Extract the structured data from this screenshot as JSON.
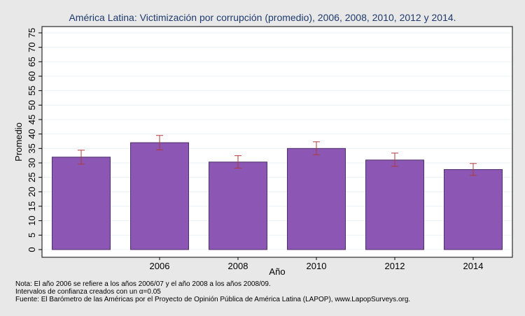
{
  "chart_data": {
    "type": "bar",
    "title": "América Latina: Victimización por corrupción (promedio), 2006, 2008, 2010, 2012 y 2014.",
    "xlabel": "Año",
    "ylabel": "Promedio",
    "categories": [
      "",
      "2006",
      "2008",
      "2010",
      "2012",
      "2014"
    ],
    "values": [
      32.0,
      37.0,
      30.3,
      35.0,
      31.0,
      27.7
    ],
    "ci_low": [
      29.6,
      34.5,
      28.2,
      32.8,
      28.8,
      25.7
    ],
    "ci_high": [
      34.4,
      39.5,
      32.5,
      37.3,
      33.4,
      29.8
    ],
    "ylim": [
      0,
      75
    ],
    "yticks": [
      0,
      5,
      10,
      15,
      20,
      25,
      30,
      35,
      40,
      45,
      50,
      55,
      60,
      65,
      70,
      75
    ],
    "grid": true,
    "bar_color": "#8b56b4",
    "bar_edge_color": "#4e2f69",
    "errorbar_color": "#b33a3a"
  },
  "notes": [
    "Nota: El año 2006 se refiere a los años 2006/07 y el año 2008 a los años 2008/09.",
    "Intervalos de confianza creados con un α=0.05",
    "Fuente: El Barómetro de las Américas por el Proyecto de Opinión Pública de América Latina (LAPOP), www.LapopSurveys.org."
  ]
}
